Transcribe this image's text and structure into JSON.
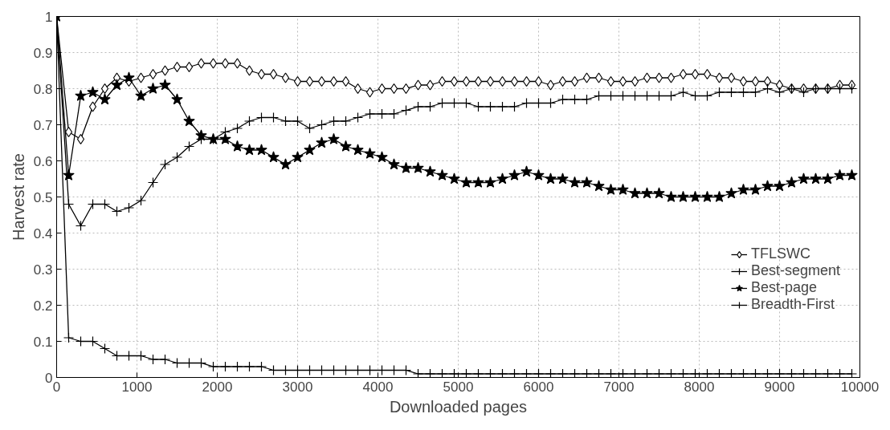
{
  "chart_data": {
    "type": "line",
    "xlabel": "Downloaded pages",
    "ylabel": "Harvest rate",
    "x": [
      0,
      150,
      300,
      450,
      600,
      750,
      900,
      1050,
      1200,
      1350,
      1500,
      1650,
      1800,
      1950,
      2100,
      2250,
      2400,
      2550,
      2700,
      2850,
      3000,
      3150,
      3300,
      3450,
      3600,
      3750,
      3900,
      4050,
      4200,
      4350,
      4500,
      4650,
      4800,
      4950,
      5100,
      5250,
      5400,
      5550,
      5700,
      5850,
      6000,
      6150,
      6300,
      6450,
      6600,
      6750,
      6900,
      7050,
      7200,
      7350,
      7500,
      7650,
      7800,
      7950,
      8100,
      8250,
      8400,
      8550,
      8700,
      8850,
      9000,
      9150,
      9300,
      9450,
      9600,
      9750,
      9900
    ],
    "series": [
      {
        "name": "TFLSWC",
        "color": "#000000",
        "marker": "diamond",
        "values": [
          1.0,
          0.68,
          0.66,
          0.75,
          0.8,
          0.83,
          0.82,
          0.83,
          0.84,
          0.85,
          0.86,
          0.86,
          0.87,
          0.87,
          0.87,
          0.87,
          0.85,
          0.84,
          0.84,
          0.83,
          0.82,
          0.82,
          0.82,
          0.82,
          0.82,
          0.8,
          0.79,
          0.8,
          0.8,
          0.8,
          0.81,
          0.81,
          0.82,
          0.82,
          0.82,
          0.82,
          0.82,
          0.82,
          0.82,
          0.82,
          0.82,
          0.81,
          0.82,
          0.82,
          0.83,
          0.83,
          0.82,
          0.82,
          0.82,
          0.83,
          0.83,
          0.83,
          0.84,
          0.84,
          0.84,
          0.83,
          0.83,
          0.82,
          0.82,
          0.82,
          0.81,
          0.8,
          0.8,
          0.8,
          0.8,
          0.81,
          0.81
        ]
      },
      {
        "name": "Best-segment",
        "color": "#000000",
        "marker": "cross",
        "values": [
          1.0,
          0.48,
          0.42,
          0.48,
          0.48,
          0.46,
          0.47,
          0.49,
          0.54,
          0.59,
          0.61,
          0.64,
          0.66,
          0.66,
          0.68,
          0.69,
          0.71,
          0.72,
          0.72,
          0.71,
          0.71,
          0.69,
          0.7,
          0.71,
          0.71,
          0.72,
          0.73,
          0.73,
          0.73,
          0.74,
          0.75,
          0.75,
          0.76,
          0.76,
          0.76,
          0.75,
          0.75,
          0.75,
          0.75,
          0.76,
          0.76,
          0.76,
          0.77,
          0.77,
          0.77,
          0.78,
          0.78,
          0.78,
          0.78,
          0.78,
          0.78,
          0.78,
          0.79,
          0.78,
          0.78,
          0.79,
          0.79,
          0.79,
          0.79,
          0.8,
          0.79,
          0.8,
          0.79,
          0.8,
          0.8,
          0.8,
          0.8
        ]
      },
      {
        "name": "Best-page",
        "color": "#000000",
        "marker": "star",
        "values": [
          1.0,
          0.56,
          0.78,
          0.79,
          0.77,
          0.81,
          0.83,
          0.78,
          0.8,
          0.81,
          0.77,
          0.71,
          0.67,
          0.66,
          0.66,
          0.64,
          0.63,
          0.63,
          0.61,
          0.59,
          0.61,
          0.63,
          0.65,
          0.66,
          0.64,
          0.63,
          0.62,
          0.61,
          0.59,
          0.58,
          0.58,
          0.57,
          0.56,
          0.55,
          0.54,
          0.54,
          0.54,
          0.55,
          0.56,
          0.57,
          0.56,
          0.55,
          0.55,
          0.54,
          0.54,
          0.53,
          0.52,
          0.52,
          0.51,
          0.51,
          0.51,
          0.5,
          0.5,
          0.5,
          0.5,
          0.5,
          0.51,
          0.52,
          0.52,
          0.53,
          0.53,
          0.54,
          0.55,
          0.55,
          0.55,
          0.56,
          0.56
        ]
      },
      {
        "name": "Breadth-First",
        "color": "#000000",
        "marker": "cross",
        "values": [
          1.0,
          0.11,
          0.1,
          0.1,
          0.08,
          0.06,
          0.06,
          0.06,
          0.05,
          0.05,
          0.04,
          0.04,
          0.04,
          0.03,
          0.03,
          0.03,
          0.03,
          0.03,
          0.02,
          0.02,
          0.02,
          0.02,
          0.02,
          0.02,
          0.02,
          0.02,
          0.02,
          0.02,
          0.02,
          0.02,
          0.01,
          0.01,
          0.01,
          0.01,
          0.01,
          0.01,
          0.01,
          0.01,
          0.01,
          0.01,
          0.01,
          0.01,
          0.01,
          0.01,
          0.01,
          0.01,
          0.01,
          0.01,
          0.01,
          0.01,
          0.01,
          0.01,
          0.01,
          0.01,
          0.01,
          0.01,
          0.01,
          0.01,
          0.01,
          0.01,
          0.01,
          0.01,
          0.01,
          0.01,
          0.01,
          0.01,
          0.01
        ]
      }
    ],
    "xlim": [
      0,
      10000
    ],
    "xticks": [
      0,
      1000,
      2000,
      3000,
      4000,
      5000,
      6000,
      7000,
      8000,
      9000,
      10000
    ],
    "ylim": [
      0,
      1
    ],
    "yticks": [
      0,
      0.1,
      0.2,
      0.3,
      0.4,
      0.5,
      0.6,
      0.7,
      0.8,
      0.9,
      1
    ],
    "grid": true,
    "legend": "right",
    "line_style": "solid"
  }
}
